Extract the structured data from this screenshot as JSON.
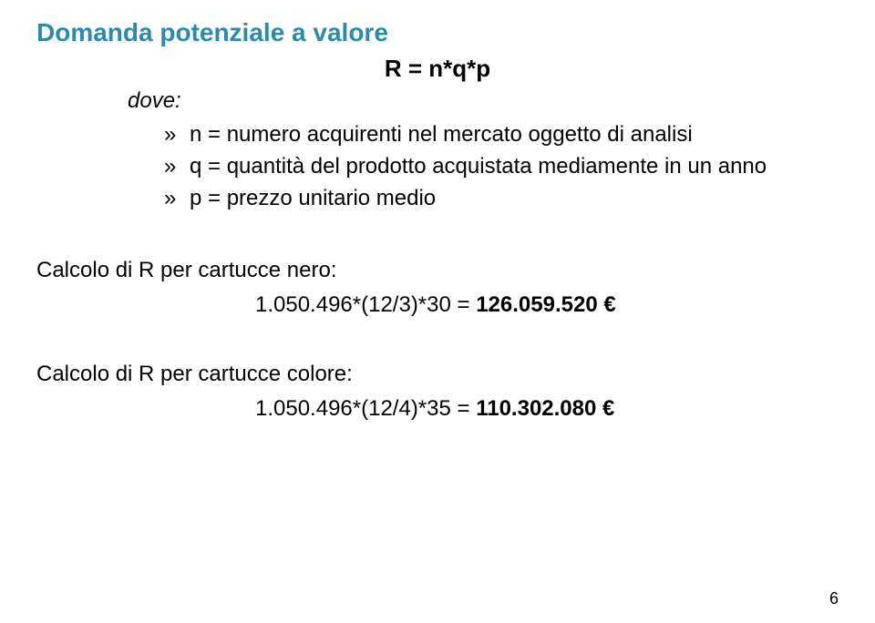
{
  "title": {
    "text": "Domanda potenziale a valore",
    "color": "#2d8ba8"
  },
  "formula": "R = n*q*p",
  "dove": "dove:",
  "bullets": [
    "n = numero acquirenti nel mercato oggetto di analisi",
    "q = quantità del prodotto acquistata mediamente in un anno",
    "p = prezzo unitario medio"
  ],
  "calc1": {
    "label": "Calcolo di R per cartucce nero:",
    "prefix": "1.050.496*(12/3)*30 = ",
    "result": "126.059.520 €"
  },
  "calc2": {
    "label": "Calcolo di R per cartucce colore:",
    "prefix": "1.050.496*(12/4)*35 = ",
    "result": "110.302.080 €"
  },
  "pageNumber": "6"
}
